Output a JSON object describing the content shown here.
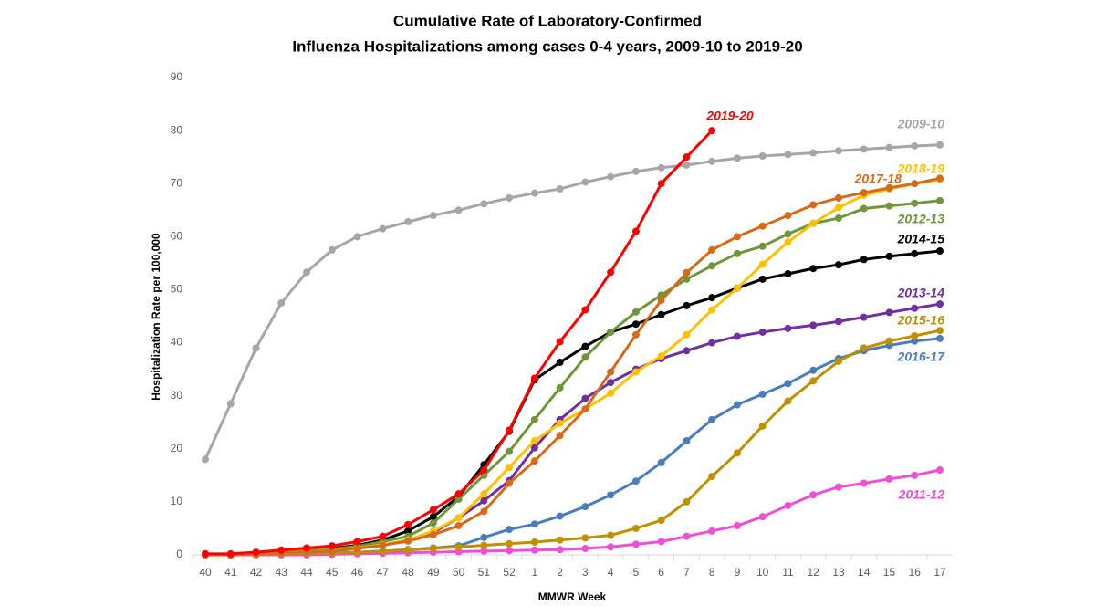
{
  "chart_data": {
    "type": "line",
    "title": [
      "Cumulative Rate of Laboratory-Confirmed",
      "Influenza Hospitalizations among cases 0-4 years, 2009-10 to 2019-20"
    ],
    "x_label": "MMWR Week",
    "y_label": "Hospitalization  Rate per 100,000",
    "categories": [
      "40",
      "41",
      "42",
      "43",
      "44",
      "45",
      "46",
      "47",
      "48",
      "49",
      "50",
      "51",
      "52",
      "1",
      "2",
      "3",
      "4",
      "5",
      "6",
      "7",
      "8",
      "9",
      "10",
      "11",
      "12",
      "13",
      "14",
      "15",
      "16",
      "17"
    ],
    "ylim": [
      0,
      90
    ],
    "yticks": [
      0,
      10,
      20,
      30,
      40,
      50,
      60,
      70,
      80,
      90
    ],
    "grid": false,
    "series": [
      {
        "name": "2009-10",
        "color": "#A6A6A6",
        "values": [
          18,
          28.5,
          39,
          47.5,
          53.3,
          57.5,
          60,
          61.5,
          62.8,
          64,
          65,
          66.2,
          67.3,
          68.2,
          69,
          70.3,
          71.3,
          72.3,
          73,
          73.5,
          74.2,
          74.8,
          75.2,
          75.5,
          75.8,
          76.2,
          76.5,
          76.8,
          77.1,
          77.3
        ]
      },
      {
        "name": "2011-12",
        "color": "#EE4FD6",
        "values": [
          0,
          0,
          0,
          0,
          0,
          0.1,
          0.2,
          0.3,
          0.4,
          0.5,
          0.6,
          0.7,
          0.8,
          0.9,
          1,
          1.2,
          1.5,
          2,
          2.5,
          3.5,
          4.5,
          5.5,
          7.2,
          9.3,
          11.3,
          12.8,
          13.5,
          14.3,
          15,
          16
        ]
      },
      {
        "name": "2016-17",
        "color": "#4A7EBB",
        "values": [
          0,
          0,
          0.1,
          0.2,
          0.3,
          0.4,
          0.5,
          0.7,
          1,
          1.3,
          1.7,
          3.3,
          4.8,
          5.8,
          7.3,
          9.1,
          11.3,
          13.9,
          17.4,
          21.5,
          25.5,
          28.3,
          30.3,
          32.3,
          34.8,
          37,
          38.5,
          39.5,
          40.3,
          40.8
        ]
      },
      {
        "name": "2015-16",
        "color": "#BF9000",
        "values": [
          0,
          0,
          0.1,
          0.2,
          0.3,
          0.4,
          0.5,
          0.7,
          0.9,
          1.2,
          1.5,
          1.8,
          2.1,
          2.4,
          2.8,
          3.2,
          3.7,
          5,
          6.5,
          10,
          14.8,
          19.2,
          24.3,
          29,
          32.8,
          36.5,
          39,
          40.3,
          41.3,
          42.3
        ]
      },
      {
        "name": "2013-14",
        "color": "#7030A0",
        "values": [
          0,
          0,
          0.2,
          0.4,
          0.6,
          0.8,
          1.2,
          1.8,
          2.8,
          4.2,
          7,
          10.2,
          14,
          20.2,
          25.5,
          29.5,
          32.5,
          35,
          37,
          38.5,
          40,
          41.2,
          42,
          42.7,
          43.3,
          44,
          44.8,
          45.7,
          46.5,
          47.3
        ]
      },
      {
        "name": "2014-15",
        "color": "#000000",
        "values": [
          0,
          0,
          0.3,
          0.6,
          0.9,
          1.2,
          1.8,
          2.8,
          4.5,
          7.2,
          11,
          17,
          23.3,
          33,
          36.3,
          39.3,
          42,
          43.5,
          45.3,
          47,
          48.5,
          50.3,
          52,
          53,
          54,
          54.7,
          55.7,
          56.3,
          56.8,
          57.3
        ]
      },
      {
        "name": "2012-13",
        "color": "#70963A",
        "values": [
          0,
          0,
          0.3,
          0.5,
          0.8,
          1.1,
          1.6,
          2.5,
          3.5,
          6,
          10.5,
          15,
          19.5,
          25.5,
          31.5,
          37.3,
          42,
          45.8,
          49,
          52,
          54.5,
          56.8,
          58.2,
          60.5,
          62.5,
          63.5,
          65.3,
          65.8,
          66.3,
          66.8
        ]
      },
      {
        "name": "2018-19",
        "color": "#FFC000",
        "values": [
          0,
          0,
          0.2,
          0.4,
          0.6,
          0.9,
          1.3,
          1.9,
          2.8,
          4.5,
          7,
          11.5,
          16.5,
          21.5,
          24.8,
          27.5,
          30.5,
          34.5,
          37.5,
          41.5,
          46.2,
          50.3,
          54.8,
          59,
          62.5,
          65.5,
          67.8,
          69,
          70,
          70.8
        ]
      },
      {
        "name": "2017-18",
        "color": "#D46A1A",
        "values": [
          0,
          0,
          0.2,
          0.4,
          0.6,
          0.8,
          1.2,
          1.8,
          2.6,
          3.8,
          5.5,
          8.2,
          13.5,
          17.7,
          22.5,
          27.5,
          34.5,
          41.5,
          48,
          53.2,
          57.5,
          60,
          62,
          64,
          66,
          67.3,
          68.3,
          69.2,
          70,
          71
        ]
      },
      {
        "name": "2019-20",
        "color": "#FF0000",
        "values": [
          0.2,
          0.2,
          0.5,
          0.9,
          1.3,
          1.7,
          2.5,
          3.5,
          5.7,
          8.5,
          11.5,
          16,
          23.5,
          33.3,
          40.2,
          46.2,
          53.3,
          61,
          70,
          75,
          80,
          null,
          null,
          null,
          null,
          null,
          null,
          null,
          null,
          null
        ]
      }
    ]
  }
}
